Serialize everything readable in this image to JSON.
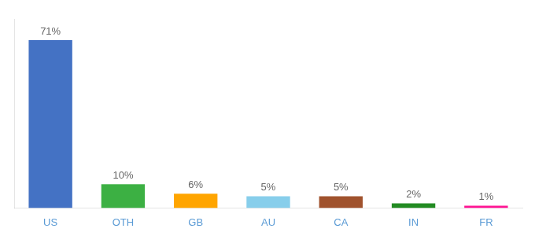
{
  "chart_data": {
    "type": "bar",
    "categories": [
      "US",
      "OTH",
      "GB",
      "AU",
      "CA",
      "IN",
      "FR"
    ],
    "values": [
      71,
      10,
      6,
      5,
      5,
      2,
      1
    ],
    "value_labels": [
      "71%",
      "10%",
      "6%",
      "5%",
      "5%",
      "2%",
      "1%"
    ],
    "data_labels": true,
    "colors": [
      "#4472C4",
      "#3CB043",
      "#FFA500",
      "#87CEEB",
      "#A0522D",
      "#228B22",
      "#FF1493"
    ],
    "ylim": [
      0,
      80
    ],
    "grid": false,
    "tick_labels": "x"
  }
}
